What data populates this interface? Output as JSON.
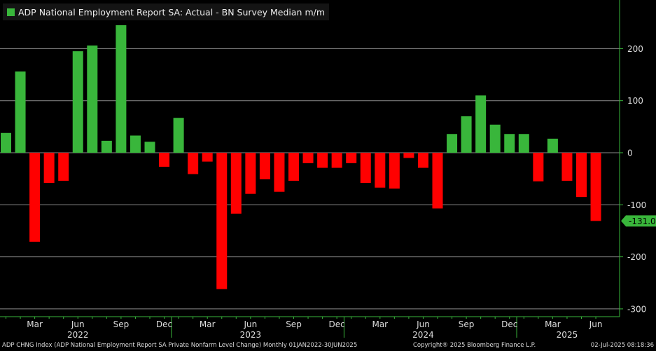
{
  "chart_data": {
    "type": "bar",
    "title": "ADP National Employment Report SA: Actual - BN Survey Median m/m",
    "legend": [
      {
        "name": "ADP National Employment Report SA: Actual - BN Survey Median m/m",
        "color": "#39b63b"
      }
    ],
    "categories": [
      "Jan 2022",
      "Feb 2022",
      "Mar 2022",
      "Apr 2022",
      "May 2022",
      "Jun 2022",
      "Jul 2022",
      "Aug 2022",
      "Sep 2022",
      "Oct 2022",
      "Nov 2022",
      "Dec 2022",
      "Jan 2023",
      "Feb 2023",
      "Mar 2023",
      "Apr 2023",
      "May 2023",
      "Jun 2023",
      "Jul 2023",
      "Aug 2023",
      "Sep 2023",
      "Oct 2023",
      "Nov 2023",
      "Dec 2023",
      "Jan 2024",
      "Feb 2024",
      "Mar 2024",
      "Apr 2024",
      "May 2024",
      "Jun 2024",
      "Jul 2024",
      "Aug 2024",
      "Sep 2024",
      "Oct 2024",
      "Nov 2024",
      "Dec 2024",
      "Jan 2025",
      "Feb 2025",
      "Mar 2025",
      "Apr 2025",
      "May 2025",
      "Jun 2025"
    ],
    "values": [
      38,
      156,
      -171,
      -58,
      -54,
      195,
      206,
      23,
      245,
      33,
      21,
      -27,
      67,
      -41,
      -17,
      -262,
      -117,
      -79,
      -51,
      -75,
      -54,
      -20,
      -29,
      -29,
      -20,
      -58,
      -67,
      -69,
      -10,
      -29,
      -107,
      36,
      70,
      110,
      54,
      36,
      36,
      -55,
      27,
      -54,
      -85,
      -131
    ],
    "ylim": [
      -310,
      265
    ],
    "yticks": [
      200,
      100,
      0,
      -100,
      -200,
      -300
    ],
    "ytick_labels": [
      "200",
      "100",
      "0",
      "-100",
      "-200",
      "-300"
    ],
    "xtick_labels": [
      {
        "label": "Mar",
        "index": 2
      },
      {
        "label": "Jun",
        "index": 5
      },
      {
        "label": "Sep",
        "index": 8
      },
      {
        "label": "Dec",
        "index": 11
      },
      {
        "label": "Mar",
        "index": 14
      },
      {
        "label": "Jun",
        "index": 17
      },
      {
        "label": "Sep",
        "index": 20
      },
      {
        "label": "Dec",
        "index": 23
      },
      {
        "label": "Mar",
        "index": 26
      },
      {
        "label": "Jun",
        "index": 29
      },
      {
        "label": "Sep",
        "index": 32
      },
      {
        "label": "Dec",
        "index": 35
      },
      {
        "label": "Mar",
        "index": 38
      },
      {
        "label": "Jun",
        "index": 41
      }
    ],
    "year_labels": [
      {
        "label": "2022",
        "index": 5
      },
      {
        "label": "2023",
        "index": 17
      },
      {
        "label": "2024",
        "index": 29
      },
      {
        "label": "2025",
        "index": 39
      }
    ],
    "last_value_label": "-131.0",
    "colors": {
      "positive": "#39b63b",
      "negative": "#ff0000",
      "axis": "#39b63b",
      "grid": "#8a8a8a"
    },
    "grid": true,
    "legend_position": "top-left"
  },
  "footer": {
    "source": "ADP CHNG Index (ADP National Employment Report SA Private Nonfarm Level Change)  Monthly 01JAN2022-30JUN2025",
    "copyright": "Copyright® 2025 Bloomberg Finance L.P.",
    "timestamp": "02-Jul-2025 08:18:36"
  }
}
